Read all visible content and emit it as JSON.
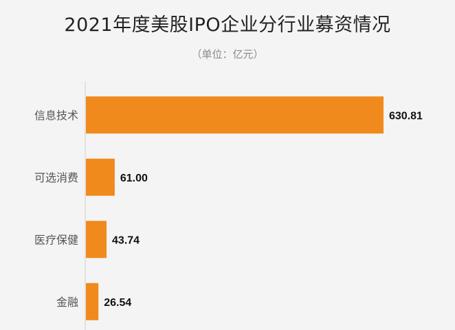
{
  "title": "2021年度美股IPO企业分行业募资情况",
  "subtitle": "（单位：亿元）",
  "colors": {
    "bar": "#f08a1c",
    "axis": "#cfcfcf",
    "category_text": "#555555",
    "value_text": "#111111",
    "background": "#f4f4f4"
  },
  "chart_data": {
    "type": "bar",
    "orientation": "horizontal",
    "categories": [
      "信息技术",
      "可选消费",
      "医疗保健",
      "金融"
    ],
    "values": [
      630.81,
      61.0,
      43.74,
      26.54
    ],
    "data_labels": [
      "630.81",
      "61.00",
      "43.74",
      "26.54"
    ],
    "title": "2021年度美股IPO企业分行业募资情况",
    "subtitle": "（单位：亿元）",
    "xlim": [
      0,
      630.81
    ],
    "grid": false,
    "legend": "none"
  }
}
